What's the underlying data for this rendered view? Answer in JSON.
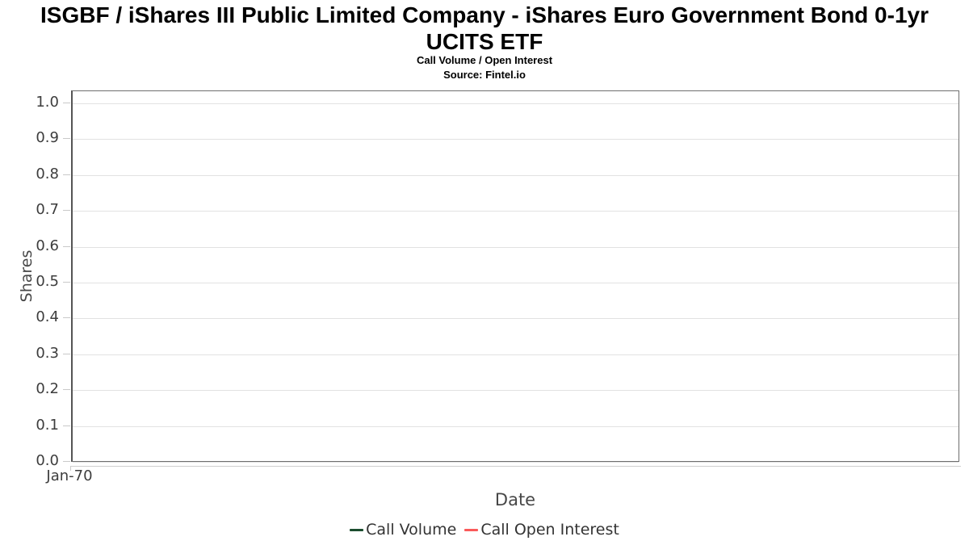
{
  "chart_data": {
    "type": "line",
    "title": "ISGBF / iShares III Public Limited Company - iShares Euro Government Bond 0-1yr UCITS ETF",
    "subtitle": "Call Volume / Open Interest",
    "source": "Source: Fintel.io",
    "xlabel": "Date",
    "ylabel": "Shares",
    "ylim": [
      0.0,
      1.04
    ],
    "y_ticks": [
      0.0,
      0.1,
      0.2,
      0.3,
      0.4,
      0.5,
      0.6,
      0.7,
      0.8,
      0.9,
      1.0
    ],
    "y_tick_labels": [
      "0.0",
      "0.1",
      "0.2",
      "0.3",
      "0.4",
      "0.5",
      "0.6",
      "0.7",
      "0.8",
      "0.9",
      "1.0"
    ],
    "x_tick_labels": [
      "Jan-70"
    ],
    "grid": "horizontal",
    "legend_position": "bottom-center",
    "series": [
      {
        "name": "Call Volume",
        "color": "#1b4d2e",
        "x": [],
        "values": []
      },
      {
        "name": "Call Open Interest",
        "color": "#fa5a5a",
        "x": [],
        "values": []
      }
    ]
  },
  "colors": {
    "call_volume": "#1b4d2e",
    "call_open_interest": "#fa5a5a",
    "gridline": "#e2e2e2",
    "plot_border": "#6e6e6e",
    "tick": "#c9c9c9",
    "axis_text": "#3d3d3d"
  }
}
